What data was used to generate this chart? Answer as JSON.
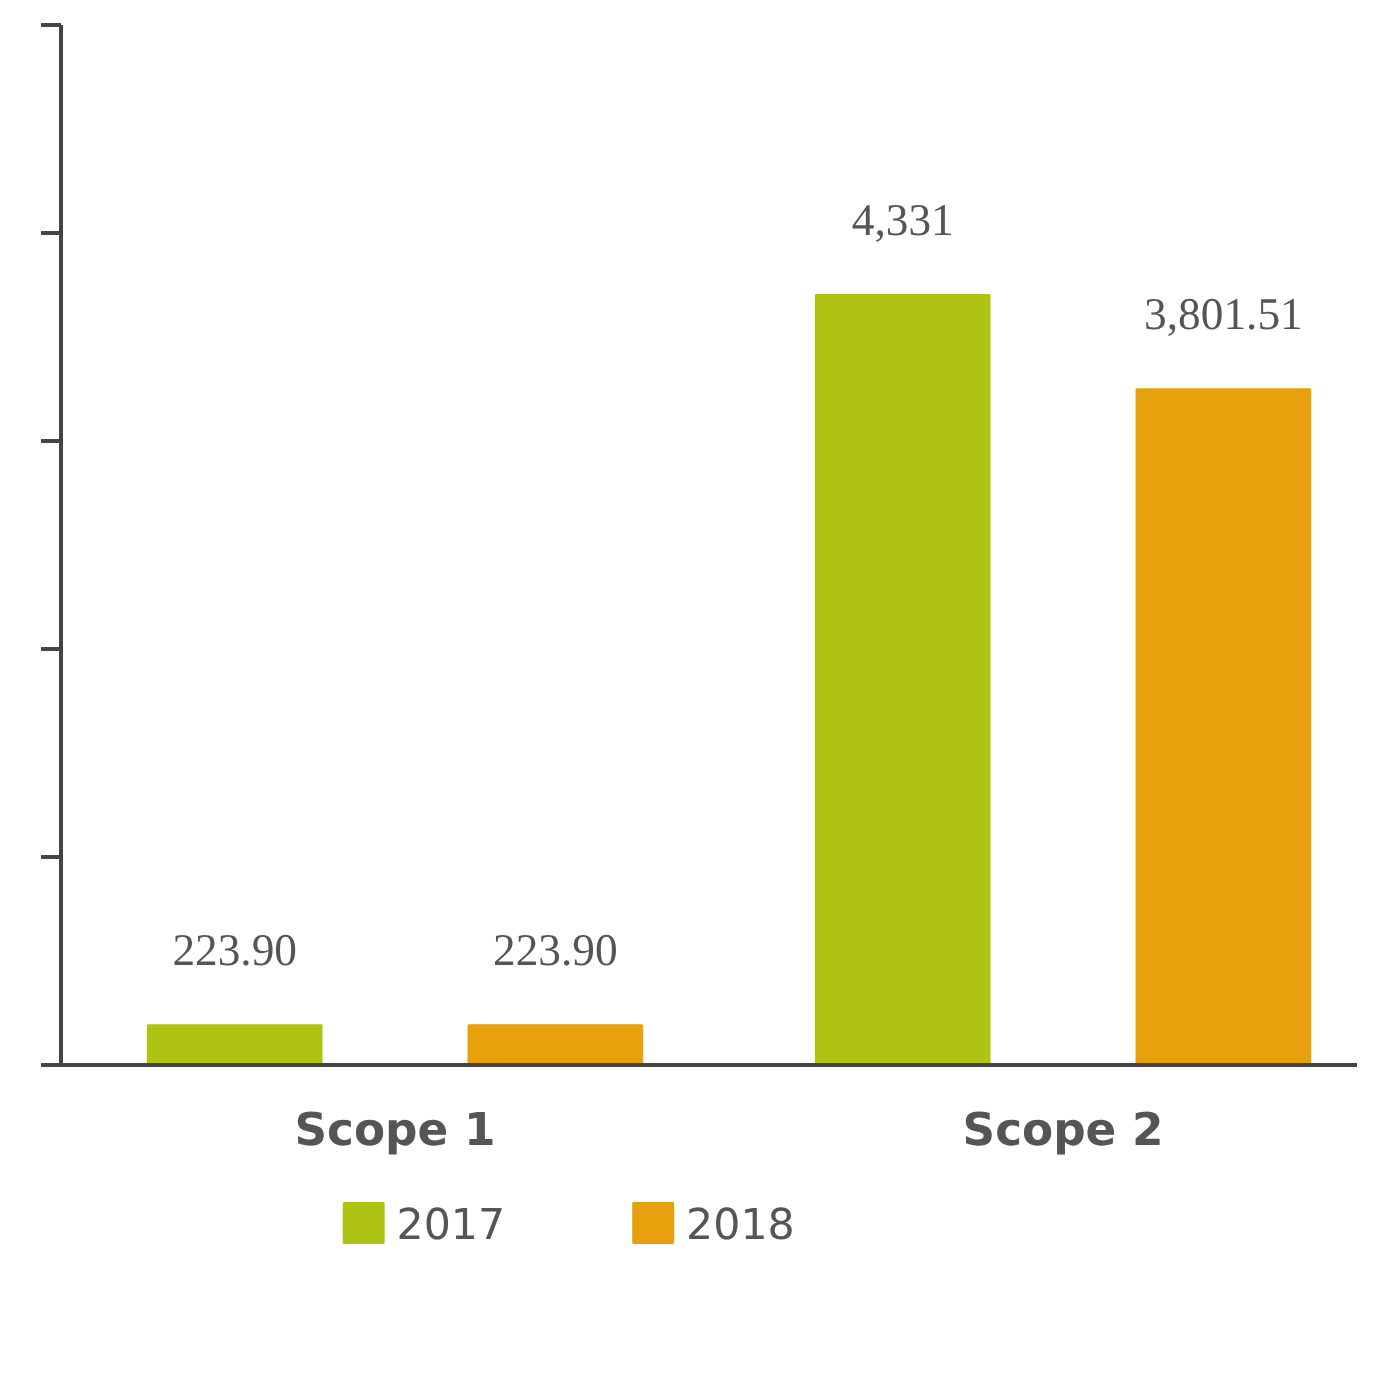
{
  "chart_data": {
    "type": "bar",
    "categories": [
      "Scope 1",
      "Scope 2"
    ],
    "series": [
      {
        "name": "2017",
        "color": "#aec312",
        "values": [
          223.9,
          4331
        ],
        "value_labels": [
          "223.90",
          "4,331"
        ]
      },
      {
        "name": "2018",
        "color": "#e8a00c",
        "values": [
          223.9,
          3801.51
        ],
        "value_labels": [
          "223.90",
          "3,801.51"
        ]
      }
    ],
    "ylim": [
      0,
      5850
    ],
    "yticks": [
      {
        "value": 0,
        "label": null
      },
      {
        "value": 1170,
        "label": null
      },
      {
        "value": 2340,
        "label": null
      },
      {
        "value": 3510,
        "label": null
      },
      {
        "value": 4680,
        "label": null
      },
      {
        "value": 5850,
        "label": null
      }
    ],
    "tick_labels": "x",
    "grid": false,
    "legend": "bottom"
  }
}
